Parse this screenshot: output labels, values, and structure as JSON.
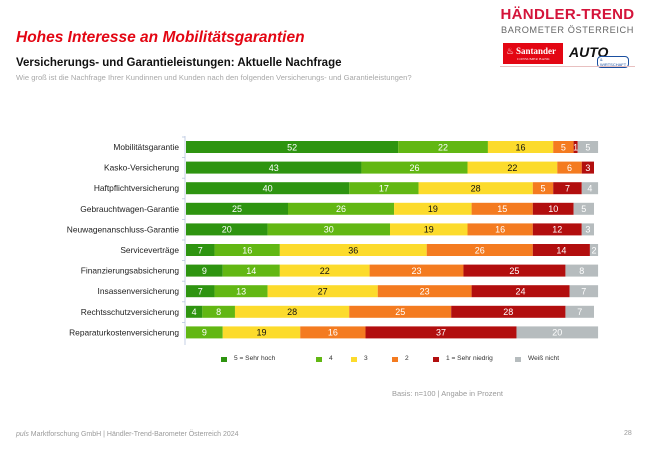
{
  "header": {
    "title": "Hohes Interesse an Mobilitätsgarantien",
    "subtitle": "Versicherungs- und Garantieleistungen: Aktuelle Nachfrage",
    "question": "Wie groß ist die Nachfrage Ihrer Kundinnen und Kunden nach den folgenden Versicherungs- und Garantieleistungen?"
  },
  "logo": {
    "line1": "HÄNDLER-TREND",
    "line2": "BAROMETER ÖSTERREICH",
    "sponsor1": "Santander",
    "sponsor1_sub": "CONSUMER BANK",
    "sponsor2": "AUTO",
    "sponsor2_sub": "& WIRTSCHAFT"
  },
  "chart_data": {
    "type": "bar",
    "orientation": "horizontal",
    "stacked": true,
    "title": "Versicherungs- und Garantieleistungen: Aktuelle Nachfrage",
    "xlabel": "",
    "ylabel": "",
    "xlim": [
      0,
      100
    ],
    "grid": false,
    "legend_position": "bottom",
    "categories": [
      "Mobilitätsgarantie",
      "Kasko-Versicherung",
      "Haftpflichtversicherung",
      "Gebrauchtwagen-Garantie",
      "Neuwagenanschluss-Garantie",
      "Serviceverträge",
      "Finanzierungsabsicherung",
      "Insassenversicherung",
      "Rechtsschutzversicherung",
      "Reparaturkostenversicherung"
    ],
    "series": [
      {
        "name": "5 = Sehr hoch",
        "color": "#2e9410",
        "label_color": "#ffffff",
        "values": [
          52,
          43,
          40,
          25,
          20,
          7,
          9,
          7,
          4,
          0
        ]
      },
      {
        "name": "4",
        "color": "#62b713",
        "label_color": "#ffffff",
        "values": [
          22,
          26,
          17,
          26,
          30,
          16,
          14,
          13,
          8,
          9
        ]
      },
      {
        "name": "3",
        "color": "#fcdb2c",
        "label_color": "#111111",
        "values": [
          16,
          22,
          28,
          19,
          19,
          36,
          22,
          27,
          28,
          19
        ]
      },
      {
        "name": "2",
        "color": "#f47b20",
        "label_color": "#ffffff",
        "values": [
          5,
          6,
          5,
          15,
          16,
          26,
          23,
          23,
          25,
          16
        ]
      },
      {
        "name": "1 = Sehr niedrig",
        "color": "#b20e0e",
        "label_color": "#ffffff",
        "values": [
          1,
          3,
          7,
          10,
          12,
          14,
          25,
          24,
          28,
          37
        ]
      },
      {
        "name": "Weiß nicht",
        "color": "#b6bcbe",
        "label_color": "#ffffff",
        "values": [
          5,
          0,
          4,
          5,
          3,
          2,
          8,
          7,
          7,
          20
        ]
      }
    ]
  },
  "basis": "Basis: n=100 | Angabe in Prozent",
  "footer": {
    "brand": "puls",
    "text": " Marktforschung GmbH | Händler-Trend-Barometer Österreich 2024",
    "page": "28"
  }
}
